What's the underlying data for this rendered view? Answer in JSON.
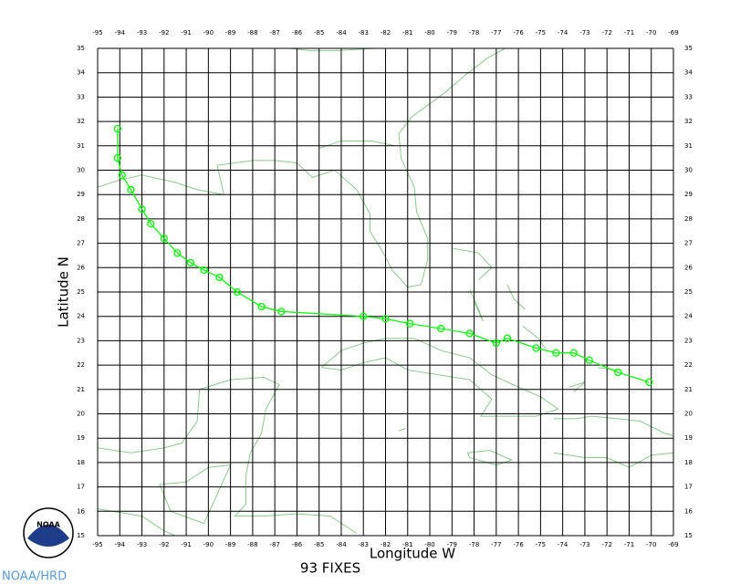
{
  "chart_data": {
    "type": "track",
    "x_label": "Longitude  W",
    "y_label": "Latitude  N",
    "annotation": "93 FIXES",
    "credit": "NOAA/HRD",
    "logo_text": "NOAA",
    "color": "#00ff00",
    "grid": true,
    "xlim": [
      -95,
      -69
    ],
    "ylim": [
      15,
      35
    ],
    "xticks": [
      -95,
      -94,
      -93,
      -92,
      -91,
      -90,
      -89,
      -88,
      -87,
      -86,
      -85,
      -84,
      -83,
      -82,
      -81,
      -80,
      -79,
      -78,
      -77,
      -76,
      -75,
      -74,
      -73,
      -72,
      -71,
      -70,
      -69
    ],
    "yticks": [
      15,
      16,
      17,
      18,
      19,
      20,
      21,
      22,
      23,
      24,
      25,
      26,
      27,
      28,
      29,
      30,
      31,
      32,
      33,
      34,
      35
    ],
    "x": [
      -94.1,
      -94.1,
      -93.9,
      -93.5,
      -93.0,
      -92.6,
      -92.0,
      -91.4,
      -90.8,
      -90.2,
      -89.5,
      -88.7,
      -87.6,
      -86.7,
      -83.0,
      -82.0,
      -80.9,
      -79.5,
      -78.2,
      -77.0,
      -76.5,
      -75.2,
      -74.3,
      -73.5,
      -72.8,
      -71.5,
      -70.1
    ],
    "values": [
      31.7,
      30.5,
      29.8,
      29.2,
      28.4,
      27.8,
      27.2,
      26.6,
      26.2,
      25.9,
      25.6,
      25.0,
      24.4,
      24.2,
      24.0,
      23.9,
      23.7,
      23.5,
      23.3,
      22.9,
      23.1,
      22.7,
      22.5,
      22.5,
      22.2,
      21.7,
      21.3
    ]
  }
}
